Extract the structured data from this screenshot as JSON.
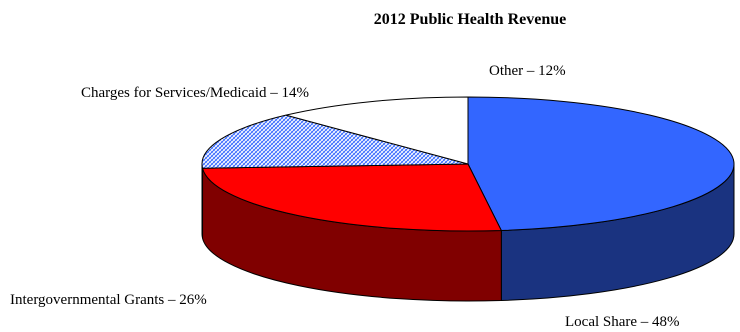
{
  "chart_data": {
    "type": "pie",
    "variant": "3d",
    "title": "2012 Public Health Revenue",
    "slices": [
      {
        "name": "Local Share",
        "value": 48,
        "label": "Local Share – 48%",
        "color": "#3366ff",
        "side_color": "#1a3380"
      },
      {
        "name": "Intergovernmental Grants",
        "value": 26,
        "label": "Intergovernmental Grants – 26%",
        "color": "#ff0000",
        "side_color": "#800000"
      },
      {
        "name": "Charges for Services/Medicaid",
        "value": 14,
        "label": "Charges for Services/Medicaid – 14%",
        "color": "#c0d4ff",
        "side_color": "#5a6e9a",
        "pattern": "hatch"
      },
      {
        "name": "Other",
        "value": 12,
        "label": "Other – 12%",
        "color": "#ffffff",
        "side_color": "#ffffff"
      }
    ]
  }
}
